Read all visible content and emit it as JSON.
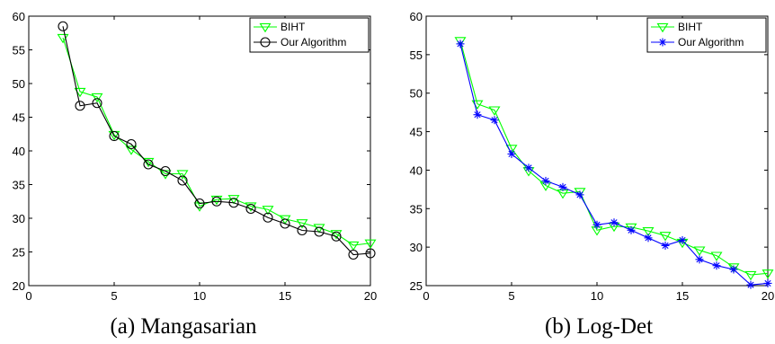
{
  "chart_data": [
    {
      "type": "line",
      "caption": "(a)  Mangasarian",
      "xlim": [
        0,
        20
      ],
      "ylim": [
        20,
        60
      ],
      "x_ticks": [
        0,
        5,
        10,
        15,
        20
      ],
      "y_ticks": [
        20,
        25,
        30,
        35,
        40,
        45,
        50,
        55,
        60
      ],
      "grid": false,
      "legend_position": "top-right",
      "x": [
        2,
        3,
        4,
        5,
        6,
        7,
        8,
        9,
        10,
        11,
        12,
        13,
        14,
        15,
        16,
        17,
        18,
        19,
        20
      ],
      "series": [
        {
          "name": "BIHT",
          "color": "#00ff00",
          "marker": "triangle-down",
          "values": [
            56.8,
            48.8,
            48.0,
            42.4,
            40.2,
            38.4,
            36.6,
            36.6,
            31.8,
            32.8,
            32.9,
            31.8,
            31.3,
            29.9,
            29.3,
            28.6,
            27.7,
            26.0,
            26.3
          ]
        },
        {
          "name": "Our Algorithm",
          "color": "#000000",
          "marker": "circle",
          "values": [
            58.5,
            46.7,
            47.1,
            42.2,
            41.0,
            38.0,
            37.0,
            35.6,
            32.2,
            32.5,
            32.3,
            31.4,
            30.1,
            29.2,
            28.2,
            28.0,
            27.3,
            24.6,
            24.8
          ]
        }
      ]
    },
    {
      "type": "line",
      "caption": "(b)  Log-Det",
      "xlim": [
        0,
        20
      ],
      "ylim": [
        25,
        60
      ],
      "x_ticks": [
        0,
        5,
        10,
        15,
        20
      ],
      "y_ticks": [
        25,
        30,
        35,
        40,
        45,
        50,
        55,
        60
      ],
      "grid": false,
      "legend_position": "top-right",
      "x": [
        2,
        3,
        4,
        5,
        6,
        7,
        8,
        9,
        10,
        11,
        12,
        13,
        14,
        15,
        16,
        17,
        18,
        19,
        20
      ],
      "series": [
        {
          "name": "BIHT",
          "color": "#00ff00",
          "marker": "triangle-down",
          "values": [
            56.8,
            48.6,
            47.8,
            42.8,
            39.9,
            38.0,
            37.0,
            37.2,
            32.2,
            32.7,
            32.6,
            32.1,
            31.5,
            30.6,
            29.6,
            28.9,
            27.4,
            26.4,
            26.6
          ]
        },
        {
          "name": "Our Algorithm",
          "color": "#0000ff",
          "marker": "asterisk",
          "values": [
            56.4,
            47.2,
            46.5,
            42.1,
            40.3,
            38.6,
            37.8,
            36.8,
            32.9,
            33.2,
            32.2,
            31.2,
            30.2,
            30.9,
            28.4,
            27.6,
            27.1,
            25.1,
            25.3
          ]
        }
      ]
    }
  ]
}
